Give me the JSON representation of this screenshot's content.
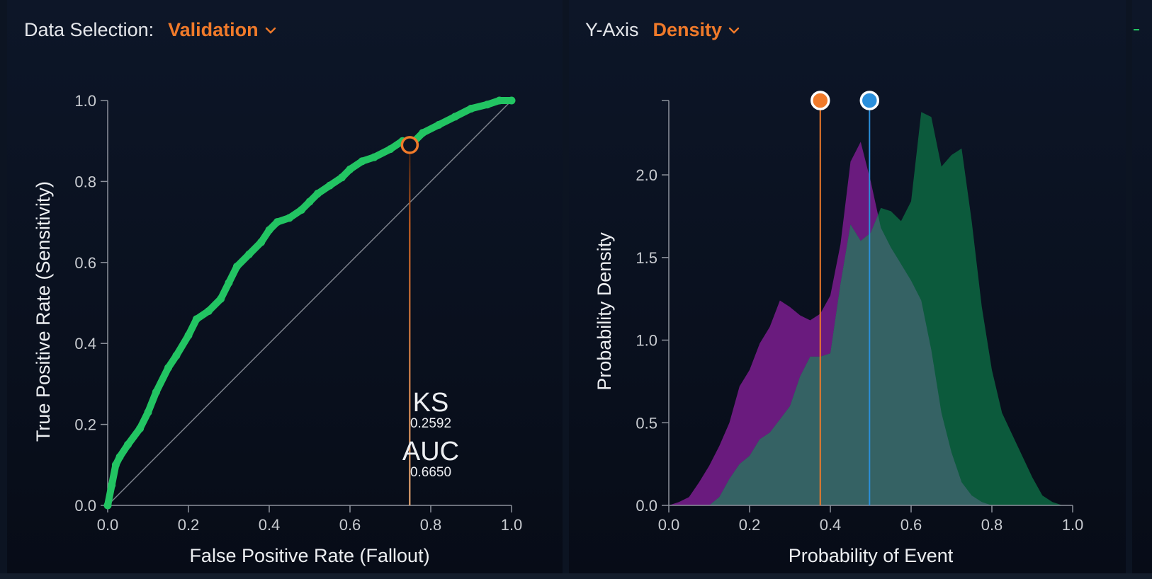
{
  "left_panel": {
    "selector_label": "Data Selection:",
    "selector_value": "Validation"
  },
  "right_panel": {
    "selector_label": "Y-Axis",
    "selector_value": "Density"
  },
  "metrics": {
    "ks_label": "KS",
    "ks_value": "0.2592",
    "auc_label": "AUC",
    "auc_value": "0.6650"
  },
  "colors": {
    "accent": "#f07a2a",
    "roc_curve": "#22c462",
    "threshold_marker": "#f07a2a",
    "comparison_marker": "#2b8fdb",
    "density_purple": "#6a1b7e",
    "density_green": "#0c5a3c",
    "density_overlap": "#356264"
  },
  "chart_data": [
    {
      "type": "line",
      "xlabel": "False Positive Rate (Fallout)",
      "ylabel": "True Positive Rate (Sensitivity)",
      "xlim": [
        0,
        1
      ],
      "ylim": [
        0,
        1
      ],
      "x_ticks": [
        "0.0",
        "0.2",
        "0.4",
        "0.6",
        "0.8",
        "1.0"
      ],
      "y_ticks": [
        "0.0",
        "0.2",
        "0.4",
        "0.6",
        "0.8",
        "1.0"
      ],
      "series": [
        {
          "x": [
            0.0,
            0.01,
            0.02,
            0.03,
            0.05,
            0.08,
            0.1,
            0.12,
            0.15,
            0.17,
            0.2,
            0.22,
            0.25,
            0.28,
            0.3,
            0.32,
            0.35,
            0.38,
            0.4,
            0.42,
            0.45,
            0.48,
            0.5,
            0.52,
            0.55,
            0.58,
            0.6,
            0.63,
            0.66,
            0.7,
            0.73,
            0.75,
            0.78,
            0.82,
            0.86,
            0.9,
            0.94,
            0.97,
            1.0
          ],
          "y": [
            0.0,
            0.05,
            0.1,
            0.12,
            0.15,
            0.19,
            0.23,
            0.28,
            0.34,
            0.37,
            0.42,
            0.46,
            0.48,
            0.51,
            0.55,
            0.59,
            0.62,
            0.65,
            0.68,
            0.7,
            0.71,
            0.73,
            0.75,
            0.77,
            0.79,
            0.81,
            0.83,
            0.85,
            0.86,
            0.88,
            0.9,
            0.89,
            0.92,
            0.94,
            0.96,
            0.98,
            0.99,
            1.0,
            1.0
          ]
        }
      ],
      "reference_line": {
        "x": [
          0,
          1
        ],
        "y": [
          0,
          1
        ]
      },
      "threshold_point": {
        "x": 0.748,
        "y": 0.89
      },
      "annotations": [
        "KS 0.2592",
        "AUC 0.6650"
      ]
    },
    {
      "type": "area",
      "xlabel": "Probability of Event",
      "ylabel": "Probability Density",
      "xlim": [
        0,
        1
      ],
      "ylim": [
        0,
        2.45
      ],
      "x_ticks": [
        "0.0",
        "0.2",
        "0.4",
        "0.6",
        "0.8",
        "1.0"
      ],
      "y_ticks": [
        "0.0",
        "0.5",
        "1.0",
        "1.5",
        "2.0"
      ],
      "x": [
        0.0,
        0.025,
        0.05,
        0.075,
        0.1,
        0.125,
        0.15,
        0.175,
        0.2,
        0.225,
        0.25,
        0.275,
        0.3,
        0.325,
        0.35,
        0.375,
        0.4,
        0.425,
        0.45,
        0.475,
        0.5,
        0.525,
        0.55,
        0.575,
        0.6,
        0.625,
        0.65,
        0.675,
        0.7,
        0.725,
        0.75,
        0.775,
        0.8,
        0.825,
        0.85,
        0.875,
        0.9,
        0.925,
        0.95,
        0.975,
        1.0
      ],
      "series": [
        {
          "values": [
            0.0,
            0.02,
            0.05,
            0.14,
            0.24,
            0.36,
            0.5,
            0.72,
            0.82,
            0.98,
            1.08,
            1.24,
            1.2,
            1.15,
            1.12,
            1.16,
            1.27,
            1.58,
            2.08,
            2.2,
            1.96,
            1.68,
            1.56,
            1.46,
            1.36,
            1.24,
            0.94,
            0.56,
            0.32,
            0.14,
            0.06,
            0.02,
            0.0,
            0,
            0,
            0,
            0,
            0,
            0,
            0,
            0
          ]
        },
        {
          "values": [
            0,
            0,
            0,
            0,
            0.0,
            0.05,
            0.16,
            0.25,
            0.3,
            0.4,
            0.44,
            0.52,
            0.6,
            0.78,
            0.9,
            0.9,
            0.92,
            1.34,
            1.7,
            1.6,
            1.65,
            1.8,
            1.78,
            1.72,
            1.84,
            2.38,
            2.35,
            2.05,
            2.12,
            2.16,
            1.72,
            1.2,
            0.82,
            0.56,
            0.43,
            0.3,
            0.17,
            0.06,
            0.02,
            0.0,
            0.0
          ]
        }
      ],
      "markers": [
        {
          "x": 0.375,
          "color": "#f07a2a"
        },
        {
          "x": 0.497,
          "color": "#2b8fdb"
        }
      ]
    }
  ]
}
